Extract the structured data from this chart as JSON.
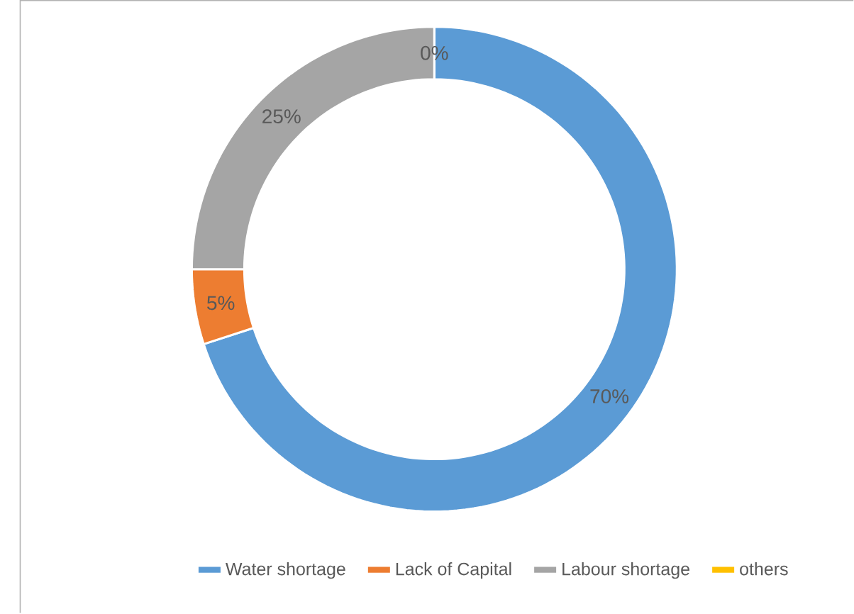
{
  "chart_data": {
    "type": "donut",
    "categories": [
      "Water shortage",
      "Lack of Capital",
      "Labour shortage",
      "others"
    ],
    "values": [
      70,
      5,
      25,
      0
    ],
    "colors": [
      "#5b9bd5",
      "#ed7d31",
      "#a5a5a5",
      "#ffc000"
    ],
    "value_labels": [
      "70%",
      "5%",
      "25%",
      "0%"
    ],
    "legend": "bottom"
  }
}
